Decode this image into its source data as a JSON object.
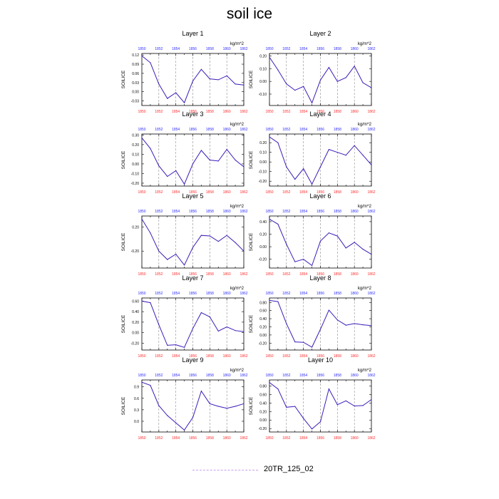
{
  "title": "soil ice",
  "legend": {
    "label": "20TR_125_02",
    "color": "#c9a0f0"
  },
  "colors": {
    "line": "#3d1cb8",
    "top_ticks": "#3030ff",
    "bottom_ticks": "#ff3030",
    "grid": "#777777"
  },
  "chart_data": [
    {
      "type": "line",
      "title": "Layer 1",
      "units": "kg/m^2",
      "ylabel": "SOILICE",
      "x": [
        1850,
        1851,
        1852,
        1853,
        1854,
        1855,
        1856,
        1857,
        1858,
        1859,
        1860,
        1861,
        1862
      ],
      "xticks": [
        1850,
        1852,
        1854,
        1856,
        1858,
        1860,
        1862
      ],
      "y": [
        0.117,
        0.095,
        0.025,
        -0.022,
        -0.003,
        -0.036,
        0.035,
        0.073,
        0.042,
        0.039,
        0.052,
        0.025,
        0.022
      ],
      "ylim": [
        -0.045,
        0.125
      ],
      "yticks": [
        -0.03,
        0.0,
        0.03,
        0.06,
        0.09,
        0.12
      ],
      "yticklabels": [
        "-0.03",
        "0.00",
        "0.03",
        "0.06",
        "0.09",
        "0.12"
      ],
      "series": [
        {
          "name": "20TR_125_02"
        }
      ]
    },
    {
      "type": "line",
      "title": "Layer 2",
      "units": "kg/m^2",
      "ylabel": "SOILICE",
      "x": [
        1850,
        1851,
        1852,
        1853,
        1854,
        1855,
        1856,
        1857,
        1858,
        1859,
        1860,
        1861,
        1862
      ],
      "xticks": [
        1850,
        1852,
        1854,
        1856,
        1858,
        1860,
        1862
      ],
      "y": [
        0.19,
        0.09,
        -0.02,
        -0.07,
        -0.04,
        -0.17,
        0.01,
        0.11,
        0.0,
        0.03,
        0.12,
        -0.01,
        -0.05
      ],
      "ylim": [
        -0.19,
        0.22
      ],
      "yticks": [
        -0.1,
        0.0,
        0.1,
        0.2
      ],
      "yticklabels": [
        "-0.10",
        "0.00",
        "0.10",
        "0.20"
      ],
      "series": [
        {
          "name": "20TR_125_02"
        }
      ]
    },
    {
      "type": "line",
      "title": "Layer 3",
      "units": "kg/m^2",
      "ylabel": "SOILICE",
      "x": [
        1850,
        1851,
        1852,
        1853,
        1854,
        1855,
        1856,
        1857,
        1858,
        1859,
        1860,
        1861,
        1862
      ],
      "xticks": [
        1850,
        1852,
        1854,
        1856,
        1858,
        1860,
        1862
      ],
      "y": [
        0.27,
        0.16,
        -0.02,
        -0.13,
        -0.07,
        -0.21,
        0.0,
        0.14,
        0.04,
        0.03,
        0.15,
        0.04,
        -0.03
      ],
      "ylim": [
        -0.23,
        0.31
      ],
      "yticks": [
        -0.2,
        -0.1,
        0.0,
        0.1,
        0.2,
        0.3
      ],
      "yticklabels": [
        "-0.20",
        "-0.10",
        "0.00",
        "0.10",
        "0.20",
        "0.30"
      ],
      "series": [
        {
          "name": "20TR_125_02"
        }
      ]
    },
    {
      "type": "line",
      "title": "Layer 4",
      "units": "kg/m^2",
      "ylabel": "SOILICE",
      "x": [
        1850,
        1851,
        1852,
        1853,
        1854,
        1855,
        1856,
        1857,
        1858,
        1859,
        1860,
        1861,
        1862
      ],
      "xticks": [
        1850,
        1852,
        1854,
        1856,
        1858,
        1860,
        1862
      ],
      "y": [
        0.26,
        0.2,
        -0.05,
        -0.18,
        -0.07,
        -0.23,
        -0.05,
        0.13,
        0.1,
        0.07,
        0.17,
        0.07,
        -0.03
      ],
      "ylim": [
        -0.25,
        0.29
      ],
      "yticks": [
        -0.2,
        -0.1,
        0.0,
        0.1,
        0.2
      ],
      "yticklabels": [
        "-0.20",
        "-0.10",
        "0.00",
        "0.10",
        "0.20"
      ],
      "series": [
        {
          "name": "20TR_125_02"
        }
      ]
    },
    {
      "type": "line",
      "title": "Layer 5",
      "units": "kg/m^2",
      "ylabel": "SOILICE",
      "x": [
        1850,
        1851,
        1852,
        1853,
        1854,
        1855,
        1856,
        1857,
        1858,
        1859,
        1860,
        1861,
        1862
      ],
      "xticks": [
        1850,
        1852,
        1854,
        1856,
        1858,
        1860,
        1862
      ],
      "y": [
        0.33,
        0.1,
        -0.2,
        -0.34,
        -0.25,
        -0.43,
        -0.14,
        0.06,
        0.05,
        -0.04,
        0.06,
        -0.06,
        -0.2
      ],
      "ylim": [
        -0.48,
        0.38
      ],
      "yticks": [
        -0.2,
        0.2
      ],
      "yticklabels": [
        "-0.20",
        "0.20"
      ],
      "series": [
        {
          "name": "20TR_125_02"
        }
      ]
    },
    {
      "type": "line",
      "title": "Layer 6",
      "units": "kg/m^2",
      "ylabel": "SOILICE",
      "x": [
        1850,
        1851,
        1852,
        1853,
        1854,
        1855,
        1856,
        1857,
        1858,
        1859,
        1860,
        1861,
        1862
      ],
      "xticks": [
        1850,
        1852,
        1854,
        1856,
        1858,
        1860,
        1862
      ],
      "y": [
        0.44,
        0.36,
        0.04,
        -0.24,
        -0.2,
        -0.3,
        0.09,
        0.22,
        0.17,
        -0.02,
        0.07,
        -0.04,
        -0.12
      ],
      "ylim": [
        -0.34,
        0.49
      ],
      "yticks": [
        -0.2,
        0.0,
        0.2,
        0.4
      ],
      "yticklabels": [
        "-0.20",
        "0.00",
        "0.20",
        "0.40"
      ],
      "series": [
        {
          "name": "20TR_125_02"
        }
      ]
    },
    {
      "type": "line",
      "title": "Layer 7",
      "units": "kg/m^2",
      "ylabel": "SOILICE",
      "x": [
        1850,
        1851,
        1852,
        1853,
        1854,
        1855,
        1856,
        1857,
        1858,
        1859,
        1860,
        1861,
        1862
      ],
      "xticks": [
        1850,
        1852,
        1854,
        1856,
        1858,
        1860,
        1862
      ],
      "y": [
        0.6,
        0.57,
        0.15,
        -0.24,
        -0.23,
        -0.28,
        0.08,
        0.38,
        0.3,
        0.03,
        0.11,
        0.04,
        0.02
      ],
      "ylim": [
        -0.33,
        0.66
      ],
      "yticks": [
        -0.2,
        0.0,
        0.2,
        0.4,
        0.6
      ],
      "yticklabels": [
        "-0.20",
        "0.00",
        "0.20",
        "0.40",
        "0.60"
      ],
      "series": [
        {
          "name": "20TR_125_02"
        }
      ]
    },
    {
      "type": "line",
      "title": "Layer 8",
      "units": "kg/m^2",
      "ylabel": "SOILICE",
      "x": [
        1850,
        1851,
        1852,
        1853,
        1854,
        1855,
        1856,
        1857,
        1858,
        1859,
        1860,
        1861,
        1862
      ],
      "xticks": [
        1850,
        1852,
        1854,
        1856,
        1858,
        1860,
        1862
      ],
      "y": [
        0.85,
        0.82,
        0.28,
        -0.17,
        -0.18,
        -0.3,
        0.14,
        0.61,
        0.37,
        0.24,
        0.28,
        0.25,
        0.23
      ],
      "ylim": [
        -0.37,
        0.91
      ],
      "yticks": [
        -0.2,
        0.0,
        0.2,
        0.4,
        0.6,
        0.8
      ],
      "yticklabels": [
        "-0.20",
        "0.00",
        "0.20",
        "0.40",
        "0.60",
        "0.80"
      ],
      "series": [
        {
          "name": "20TR_125_02"
        }
      ]
    },
    {
      "type": "line",
      "title": "Layer 9",
      "units": "kg/m^2",
      "ylabel": "SOILICE",
      "x": [
        1850,
        1851,
        1852,
        1853,
        1854,
        1855,
        1856,
        1857,
        1858,
        1859,
        1860,
        1861,
        1862
      ],
      "xticks": [
        1850,
        1852,
        1854,
        1856,
        1858,
        1860,
        1862
      ],
      "y": [
        1.02,
        0.94,
        0.41,
        0.15,
        -0.04,
        -0.23,
        0.1,
        0.79,
        0.46,
        0.39,
        0.34,
        0.39,
        0.46
      ],
      "ylim": [
        -0.28,
        1.08
      ],
      "yticks": [
        0.0,
        0.3,
        0.6,
        0.9
      ],
      "yticklabels": [
        "0.0",
        "0.3",
        "0.6",
        "0.9"
      ],
      "series": [
        {
          "name": "20TR_125_02"
        }
      ]
    },
    {
      "type": "line",
      "title": "Layer 10",
      "units": "kg/m^2",
      "ylabel": "SOILICE",
      "x": [
        1850,
        1851,
        1852,
        1853,
        1854,
        1855,
        1856,
        1857,
        1858,
        1859,
        1860,
        1861,
        1862
      ],
      "xticks": [
        1850,
        1852,
        1854,
        1856,
        1858,
        1860,
        1862
      ],
      "y": [
        0.88,
        0.73,
        0.3,
        0.32,
        0.04,
        -0.21,
        -0.04,
        0.73,
        0.36,
        0.45,
        0.33,
        0.34,
        0.48
      ],
      "ylim": [
        -0.28,
        0.94
      ],
      "yticks": [
        -0.2,
        0.0,
        0.2,
        0.4,
        0.6,
        0.8
      ],
      "yticklabels": [
        "-0.20",
        "0.00",
        "0.20",
        "0.40",
        "0.60",
        "0.80"
      ],
      "series": [
        {
          "name": "20TR_125_02"
        }
      ]
    }
  ]
}
